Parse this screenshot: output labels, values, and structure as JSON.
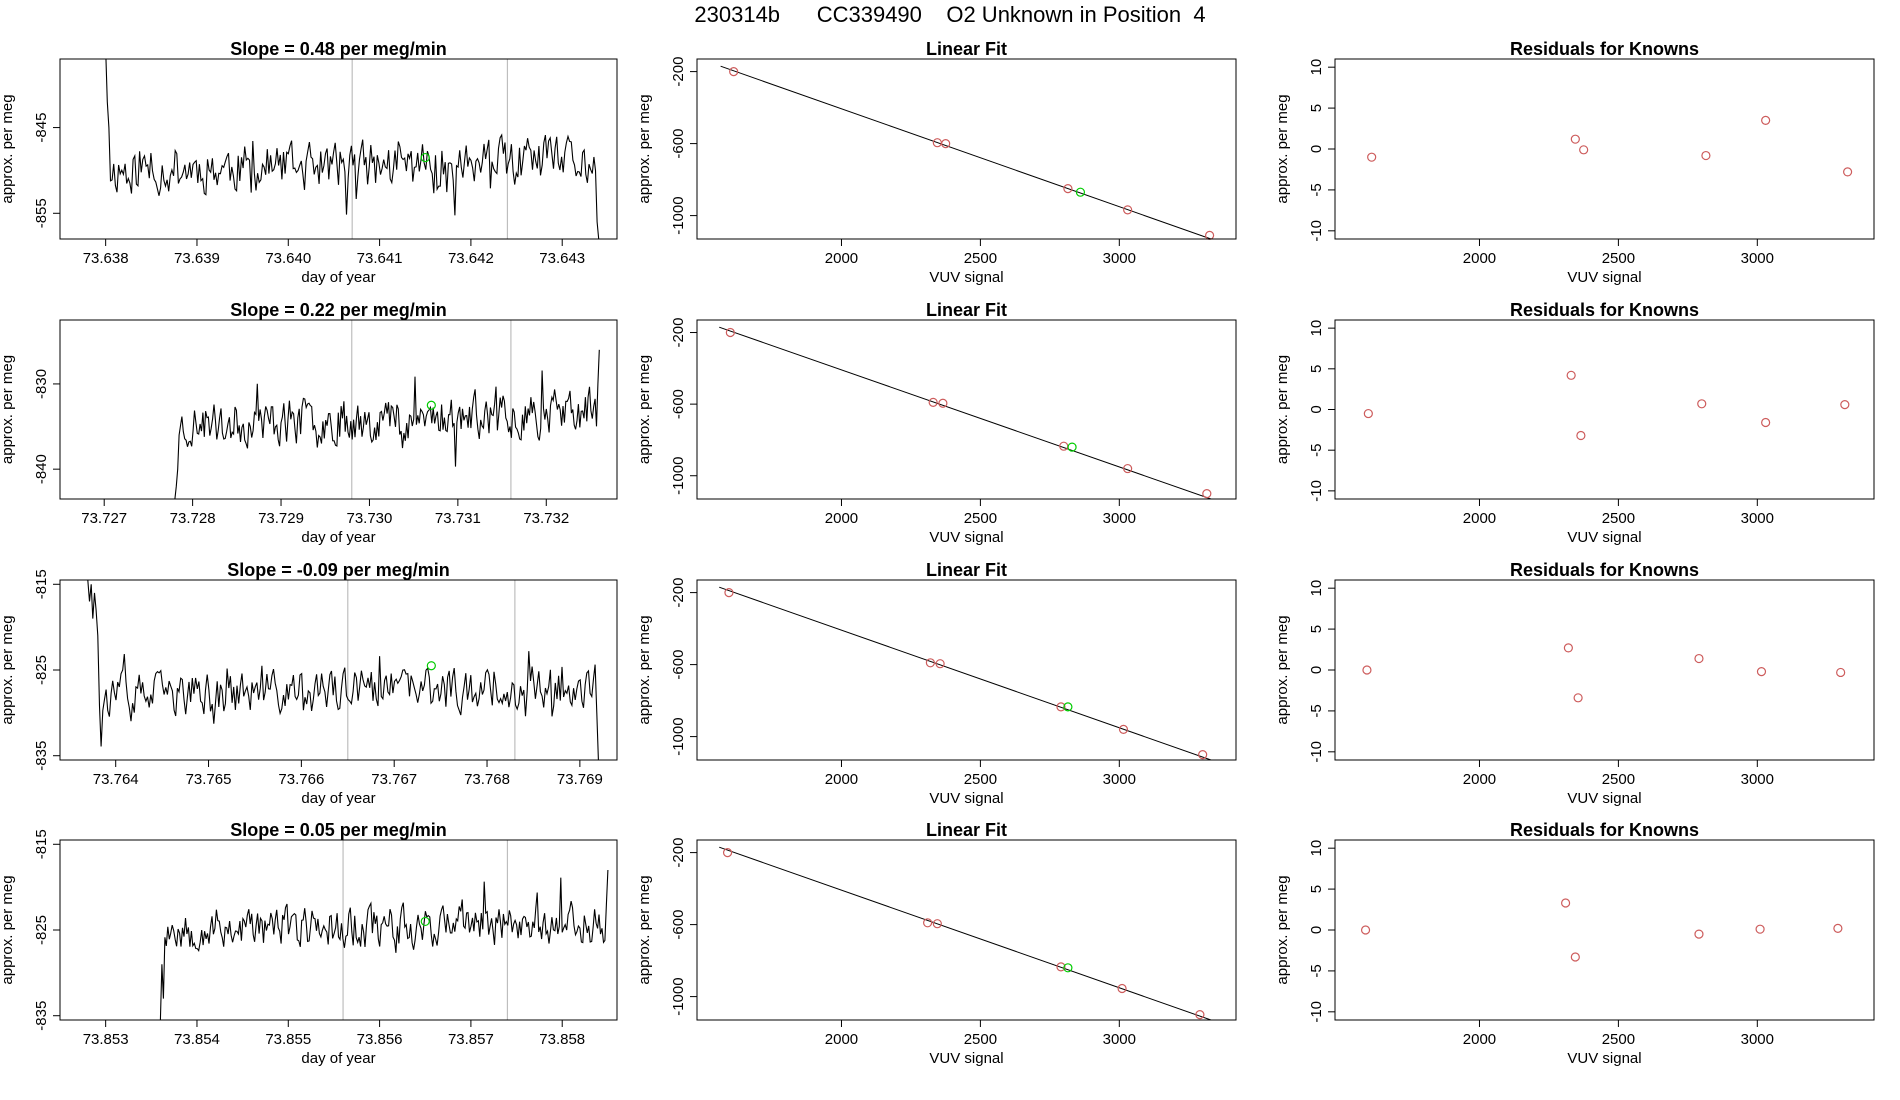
{
  "page": {
    "title": "230314b      CC339490    O2 Unknown in Position  4"
  },
  "labels": {
    "ts_ylabel": "approx. per meg",
    "ts_xlabel": "day of year",
    "fit_title": "Linear Fit",
    "fit_ylabel": "approx. per meg",
    "fit_xlabel": "VUV signal",
    "res_title": "Residuals for Knowns",
    "res_ylabel": "approx. per meg",
    "res_xlabel": "VUV signal"
  },
  "colors": {
    "trace": "#000000",
    "marker_line": "#bebebe",
    "known_points": "#cd5c5c",
    "unknown_point": "#00cc00"
  },
  "chart_data": [
    {
      "type": "line",
      "panel": "time-series",
      "row": 1,
      "title": "Slope =  0.48  per meg/min",
      "xlabel": "day of year",
      "ylabel": "approx. per meg",
      "xlim": [
        73.6375,
        73.6436
      ],
      "ylim": [
        -858.0,
        -837.0
      ],
      "xticks": [
        "73.638",
        "73.639",
        "73.640",
        "73.641",
        "73.642",
        "73.643"
      ],
      "yticks": [
        "-845",
        "-855"
      ],
      "x_start": 73.638,
      "x_end": 73.6434,
      "baseline": -849.5,
      "noise": 2.8,
      "trend": 0.8,
      "lead": [
        -836,
        -842,
        -845
      ],
      "tail": [
        -850,
        -856,
        -858
      ],
      "markers": [
        73.6407,
        73.6424
      ],
      "unknown_point": [
        73.6415,
        -848.5
      ],
      "seed": 11
    },
    {
      "type": "scatter",
      "panel": "linear-fit",
      "row": 1,
      "title": "Linear Fit",
      "xlabel": "VUV signal",
      "ylabel": "approx. per meg",
      "xlim": [
        1480,
        3420
      ],
      "ylim": [
        -1130,
        -130
      ],
      "xticks": [
        2000,
        2500,
        3000
      ],
      "yticks": [
        -200,
        -600,
        -1000
      ],
      "fit_line": [
        [
          1565,
          -170
        ],
        [
          3330,
          -1130
        ]
      ],
      "knowns": [
        [
          1612,
          -200
        ],
        [
          2345,
          -595
        ],
        [
          2375,
          -600
        ],
        [
          2815,
          -850
        ],
        [
          3030,
          -968
        ],
        [
          3325,
          -1110
        ]
      ],
      "unknown": [
        [
          2860,
          -870
        ]
      ]
    },
    {
      "type": "scatter",
      "panel": "residuals",
      "row": 1,
      "title": "Residuals for Knowns",
      "xlabel": "VUV signal",
      "ylabel": "approx. per meg",
      "xlim": [
        1480,
        3420
      ],
      "ylim": [
        -11,
        11
      ],
      "xticks": [
        2000,
        2500,
        3000
      ],
      "yticks": [
        10,
        5,
        0,
        -5,
        -10
      ],
      "points": [
        [
          1612,
          -1.0
        ],
        [
          2345,
          1.2
        ],
        [
          2375,
          -0.1
        ],
        [
          2815,
          -0.8
        ],
        [
          3030,
          3.5
        ],
        [
          3325,
          -2.8
        ]
      ]
    },
    {
      "type": "line",
      "panel": "time-series",
      "row": 2,
      "title": "Slope =  0.22  per meg/min",
      "xlabel": "day of year",
      "ylabel": "approx. per meg",
      "xlim": [
        73.7265,
        73.7328
      ],
      "ylim": [
        -843.5,
        -822.5
      ],
      "xticks": [
        "73.727",
        "73.728",
        "73.729",
        "73.730",
        "73.731",
        "73.732"
      ],
      "yticks": [
        "-830",
        "-840"
      ],
      "x_start": 73.7278,
      "x_end": 73.7326,
      "baseline": -834.0,
      "noise": 2.6,
      "trend": 1.6,
      "lead": [
        -843.5,
        -842,
        -840
      ],
      "tail": [
        -830,
        -826
      ],
      "markers": [
        73.7298,
        73.7316
      ],
      "unknown_point": [
        73.7307,
        -832.5
      ],
      "seed": 23
    },
    {
      "type": "scatter",
      "panel": "linear-fit",
      "row": 2,
      "title": "Linear Fit",
      "xlabel": "VUV signal",
      "ylabel": "approx. per meg",
      "xlim": [
        1480,
        3420
      ],
      "ylim": [
        -1130,
        -130
      ],
      "xticks": [
        2000,
        2500,
        3000
      ],
      "yticks": [
        -200,
        -600,
        -1000
      ],
      "fit_line": [
        [
          1560,
          -170
        ],
        [
          3330,
          -1130
        ]
      ],
      "knowns": [
        [
          1600,
          -200
        ],
        [
          2330,
          -590
        ],
        [
          2365,
          -595
        ],
        [
          2800,
          -835
        ],
        [
          3030,
          -960
        ],
        [
          3315,
          -1100
        ]
      ],
      "unknown": [
        [
          2830,
          -840
        ]
      ]
    },
    {
      "type": "scatter",
      "panel": "residuals",
      "row": 2,
      "title": "Residuals for Knowns",
      "xlabel": "VUV signal",
      "ylabel": "approx. per meg",
      "xlim": [
        1480,
        3420
      ],
      "ylim": [
        -11,
        11
      ],
      "xticks": [
        2000,
        2500,
        3000
      ],
      "yticks": [
        10,
        5,
        0,
        -5,
        -10
      ],
      "points": [
        [
          1600,
          -0.5
        ],
        [
          2330,
          4.2
        ],
        [
          2365,
          -3.2
        ],
        [
          2800,
          0.7
        ],
        [
          3030,
          -1.6
        ],
        [
          3315,
          0.6
        ]
      ]
    },
    {
      "type": "line",
      "panel": "time-series",
      "row": 3,
      "title": "Slope =  -0.09  per meg/min",
      "xlabel": "day of year",
      "ylabel": "approx. per meg",
      "xlim": [
        73.7634,
        73.7694
      ],
      "ylim": [
        -835.5,
        -814.5
      ],
      "xticks": [
        "73.764",
        "73.765",
        "73.766",
        "73.767",
        "73.768",
        "73.769"
      ],
      "yticks": [
        "-815",
        "-825",
        "-835"
      ],
      "x_start": 73.7637,
      "x_end": 73.7692,
      "baseline": -827.5,
      "noise": 2.5,
      "trend": 1.2,
      "lead": [
        -814.5,
        -817,
        -815,
        -819,
        -816,
        -818,
        -821
      ],
      "tail": [
        -830,
        -835.5
      ],
      "markers": [
        73.7665,
        73.7683
      ],
      "unknown_point": [
        73.7674,
        -824.5
      ],
      "seed": 37
    },
    {
      "type": "scatter",
      "panel": "linear-fit",
      "row": 3,
      "title": "Linear Fit",
      "xlabel": "VUV signal",
      "ylabel": "approx. per meg",
      "xlim": [
        1480,
        3420
      ],
      "ylim": [
        -1130,
        -130
      ],
      "xticks": [
        2000,
        2500,
        3000
      ],
      "yticks": [
        -200,
        -600,
        -1000
      ],
      "fit_line": [
        [
          1560,
          -170
        ],
        [
          3330,
          -1130
        ]
      ],
      "knowns": [
        [
          1595,
          -200
        ],
        [
          2320,
          -590
        ],
        [
          2355,
          -595
        ],
        [
          2790,
          -835
        ],
        [
          3015,
          -960
        ],
        [
          3300,
          -1100
        ]
      ],
      "unknown": [
        [
          2815,
          -835
        ]
      ]
    },
    {
      "type": "scatter",
      "panel": "residuals",
      "row": 3,
      "title": "Residuals for Knowns",
      "xlabel": "VUV signal",
      "ylabel": "approx. per meg",
      "xlim": [
        1480,
        3420
      ],
      "ylim": [
        -11,
        11
      ],
      "xticks": [
        2000,
        2500,
        3000
      ],
      "yticks": [
        10,
        5,
        0,
        -5,
        -10
      ],
      "points": [
        [
          1595,
          0.0
        ],
        [
          2320,
          2.7
        ],
        [
          2355,
          -3.4
        ],
        [
          2790,
          1.4
        ],
        [
          3015,
          -0.2
        ],
        [
          3300,
          -0.3
        ]
      ]
    },
    {
      "type": "line",
      "panel": "time-series",
      "row": 4,
      "title": "Slope =  0.05  per meg/min",
      "xlabel": "day of year",
      "ylabel": "approx. per meg",
      "xlim": [
        73.8525,
        73.8586
      ],
      "ylim": [
        -835.5,
        -814.5
      ],
      "xticks": [
        "73.853",
        "73.854",
        "73.855",
        "73.856",
        "73.857",
        "73.858"
      ],
      "yticks": [
        "-815",
        "-825",
        "-835"
      ],
      "x_start": 73.8536,
      "x_end": 73.8585,
      "baseline": -824.5,
      "noise": 2.4,
      "trend": 0.6,
      "lead": [
        -835.5,
        -829,
        -833
      ],
      "tail": [
        -822,
        -818
      ],
      "markers": [
        73.8556,
        73.8574
      ],
      "unknown_point": [
        73.8565,
        -824.0
      ],
      "seed": 53
    },
    {
      "type": "scatter",
      "panel": "linear-fit",
      "row": 4,
      "title": "Linear Fit",
      "xlabel": "VUV signal",
      "ylabel": "approx. per meg",
      "xlim": [
        1480,
        3420
      ],
      "ylim": [
        -1130,
        -130
      ],
      "xticks": [
        2000,
        2500,
        3000
      ],
      "yticks": [
        -200,
        -600,
        -1000
      ],
      "fit_line": [
        [
          1560,
          -170
        ],
        [
          3330,
          -1130
        ]
      ],
      "knowns": [
        [
          1590,
          -200
        ],
        [
          2310,
          -590
        ],
        [
          2345,
          -595
        ],
        [
          2790,
          -835
        ],
        [
          3010,
          -955
        ],
        [
          3290,
          -1100
        ]
      ],
      "unknown": [
        [
          2815,
          -840
        ]
      ]
    },
    {
      "type": "scatter",
      "panel": "residuals",
      "row": 4,
      "title": "Residuals for Knowns",
      "xlabel": "VUV signal",
      "ylabel": "approx. per meg",
      "xlim": [
        1480,
        3420
      ],
      "ylim": [
        -11,
        11
      ],
      "xticks": [
        2000,
        2500,
        3000
      ],
      "yticks": [
        10,
        5,
        0,
        -5,
        -10
      ],
      "points": [
        [
          1590,
          0.0
        ],
        [
          2310,
          3.3
        ],
        [
          2345,
          -3.3
        ],
        [
          2790,
          -0.5
        ],
        [
          3010,
          0.1
        ],
        [
          3290,
          0.2
        ]
      ]
    }
  ]
}
